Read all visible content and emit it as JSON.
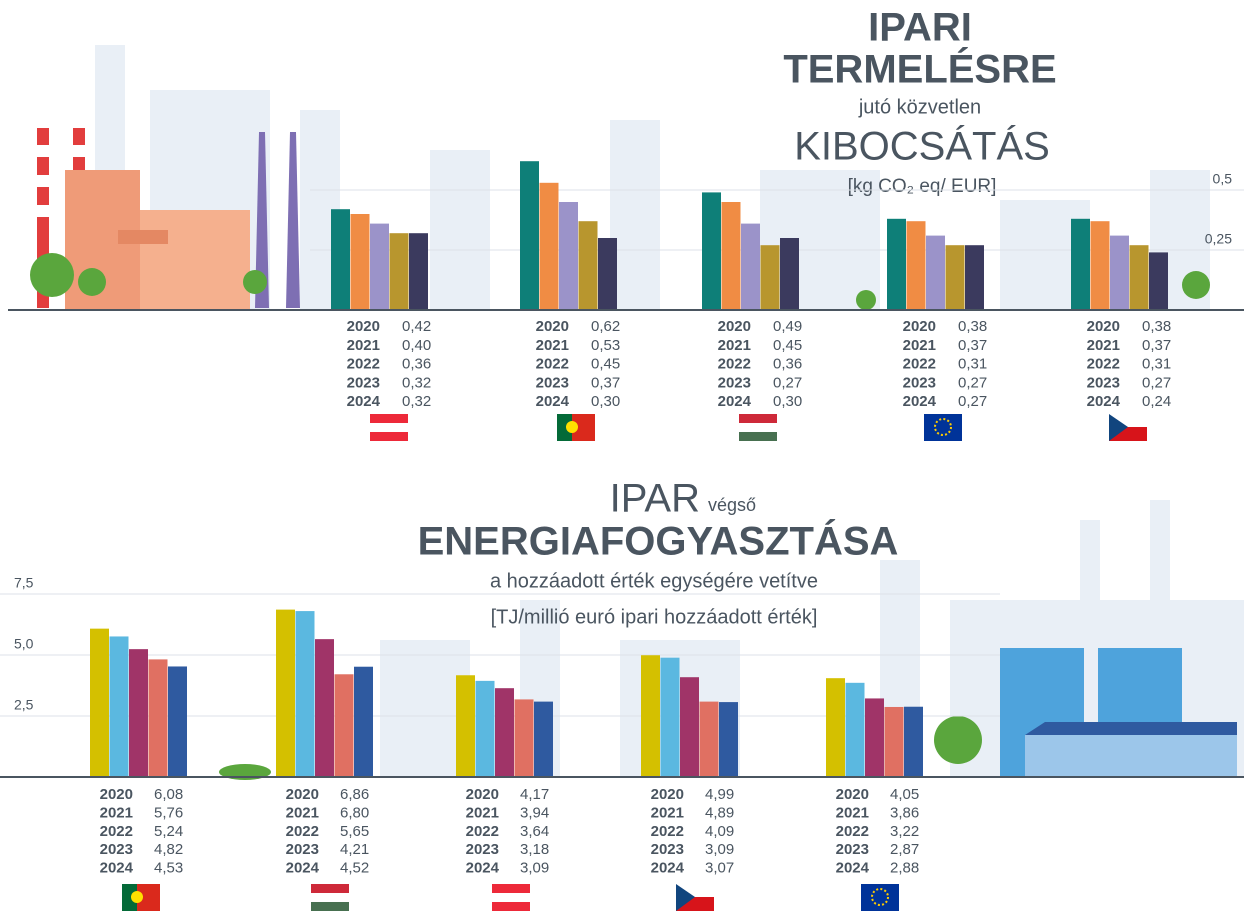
{
  "chart_data": [
    {
      "type": "bar",
      "title": [
        "IPARI",
        "TERMELÉSRE",
        "jutó közvetlen",
        "KIBOCSÁTÁS",
        "[kg CO₂ eq/ EUR]"
      ],
      "categories": [
        null,
        null,
        null,
        null,
        null
      ],
      "series": [
        {
          "name": "2020",
          "color": "#0e7f78",
          "values": [
            0.42,
            0.62,
            0.49,
            0.38,
            0.38
          ],
          "value_labels": [
            "0,42",
            "0,62",
            "0,49",
            "0,38",
            "0,38"
          ]
        },
        {
          "name": "2021",
          "color": "#f08c44",
          "values": [
            0.4,
            0.53,
            0.45,
            0.37,
            0.37
          ],
          "value_labels": [
            "0,40",
            "0,53",
            "0,45",
            "0,37",
            "0,37"
          ]
        },
        {
          "name": "2022",
          "color": "#9b93c9",
          "values": [
            0.36,
            0.45,
            0.36,
            0.31,
            0.31
          ],
          "value_labels": [
            "0,36",
            "0,45",
            "0,36",
            "0,31",
            "0,31"
          ]
        },
        {
          "name": "2023",
          "color": "#b8962e",
          "values": [
            0.32,
            0.37,
            0.27,
            0.27,
            0.27
          ],
          "value_labels": [
            "0,32",
            "0,37",
            "0,27",
            "0,27",
            "0,27"
          ]
        },
        {
          "name": "2024",
          "color": "#3b3a5e",
          "values": [
            0.32,
            0.3,
            0.3,
            0.27,
            0.24
          ],
          "value_labels": [
            "0,32",
            "0,30",
            "0,30",
            "0,27",
            "0,24"
          ]
        }
      ],
      "ylim": [
        0,
        0.65
      ],
      "yticks": [
        {
          "value": 0.25,
          "label": "0,25"
        },
        {
          "value": 0.5,
          "label": "0,5"
        }
      ],
      "grid": true
    },
    {
      "type": "bar",
      "title": [
        "IPAR",
        "végső",
        "ENERGIAFOGYASZTÁSA",
        "a hozzáadott érték egységére vetítve",
        "[TJ/millió euró ipari hozzáadott érték]"
      ],
      "categories": [
        null,
        null,
        null,
        null,
        null
      ],
      "series": [
        {
          "name": "2020",
          "color": "#d4c000",
          "values": [
            6.08,
            6.86,
            4.17,
            4.99,
            4.05
          ],
          "value_labels": [
            "6,08",
            "6,86",
            "4,17",
            "4,99",
            "4,05"
          ]
        },
        {
          "name": "2021",
          "color": "#5bb8e0",
          "values": [
            5.76,
            6.8,
            3.94,
            4.89,
            3.86
          ],
          "value_labels": [
            "5,76",
            "6,80",
            "3,94",
            "4,89",
            "3,86"
          ]
        },
        {
          "name": "2022",
          "color": "#a03468",
          "values": [
            5.24,
            5.65,
            3.64,
            4.09,
            3.22
          ],
          "value_labels": [
            "5,24",
            "5,65",
            "3,64",
            "4,09",
            "3,22"
          ]
        },
        {
          "name": "2023",
          "color": "#e07062",
          "values": [
            4.82,
            4.21,
            3.18,
            3.09,
            2.87
          ],
          "value_labels": [
            "4,82",
            "4,21",
            "3,18",
            "3,09",
            "2,87"
          ]
        },
        {
          "name": "2024",
          "color": "#2f5aa0",
          "values": [
            4.53,
            4.52,
            3.09,
            3.07,
            2.88
          ],
          "value_labels": [
            "4,53",
            "4,52",
            "3,09",
            "3,07",
            "2,88"
          ]
        }
      ],
      "ylim": [
        0,
        7.5
      ],
      "yticks": [
        {
          "value": 2.5,
          "label": "2,5"
        },
        {
          "value": 5.0,
          "label": "5,0"
        },
        {
          "value": 7.5,
          "label": "7,5"
        }
      ],
      "grid": true
    }
  ]
}
